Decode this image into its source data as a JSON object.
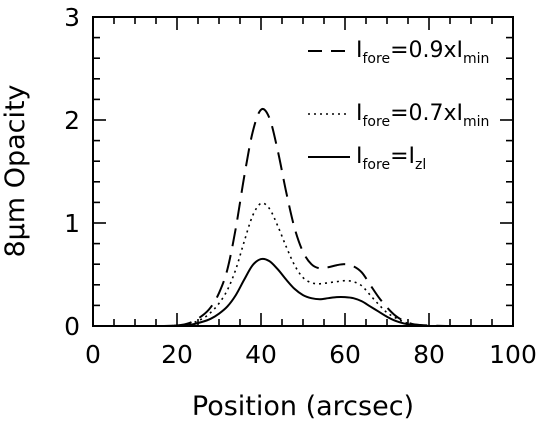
{
  "chart_data": {
    "type": "line",
    "title": "",
    "xlabel": "Position (arcsec)",
    "ylabel": "8μm Opacity",
    "xlim": [
      0,
      100
    ],
    "ylim": [
      0,
      3
    ],
    "xticks": [
      "0",
      "20",
      "40",
      "60",
      "80",
      "100"
    ],
    "yticks": [
      "0",
      "1",
      "2",
      "3"
    ],
    "grid": false,
    "legend_position": "top-right",
    "x": [
      0,
      10,
      16,
      20,
      23,
      26,
      28,
      30,
      32,
      34,
      36,
      38,
      40,
      42,
      44,
      46,
      48,
      50,
      52,
      54,
      56,
      58,
      60,
      62,
      64,
      66,
      68,
      70,
      72,
      74,
      76,
      78,
      80,
      84,
      90,
      100
    ],
    "series": [
      {
        "legend": {
          "main": "I",
          "sub": "fore",
          "mid": "=0.9xI",
          "sub2": "min"
        },
        "dash": "18 9",
        "values": [
          0,
          0,
          0,
          0.005,
          0.03,
          0.1,
          0.18,
          0.32,
          0.55,
          0.95,
          1.45,
          1.88,
          2.1,
          2.02,
          1.7,
          1.3,
          0.95,
          0.72,
          0.6,
          0.56,
          0.57,
          0.59,
          0.6,
          0.58,
          0.52,
          0.4,
          0.28,
          0.18,
          0.1,
          0.05,
          0.02,
          0.01,
          0.005,
          0,
          0,
          0
        ]
      },
      {
        "legend": {
          "main": "I",
          "sub": "fore",
          "mid": "=0.7xI",
          "sub2": "min"
        },
        "dash": "2 4",
        "values": [
          0,
          0,
          0,
          0.005,
          0.02,
          0.07,
          0.13,
          0.22,
          0.35,
          0.55,
          0.82,
          1.07,
          1.19,
          1.14,
          0.97,
          0.77,
          0.59,
          0.47,
          0.42,
          0.41,
          0.42,
          0.43,
          0.44,
          0.43,
          0.39,
          0.3,
          0.21,
          0.13,
          0.08,
          0.04,
          0.015,
          0.005,
          0,
          0,
          0,
          0
        ]
      },
      {
        "legend": {
          "main": "I",
          "sub": "fore",
          "mid": "=I",
          "sub2": "zl"
        },
        "dash": "",
        "values": [
          0,
          0,
          0,
          0.004,
          0.01,
          0.04,
          0.07,
          0.12,
          0.19,
          0.3,
          0.45,
          0.59,
          0.65,
          0.63,
          0.55,
          0.45,
          0.36,
          0.3,
          0.27,
          0.26,
          0.27,
          0.28,
          0.28,
          0.27,
          0.24,
          0.19,
          0.14,
          0.09,
          0.05,
          0.025,
          0.01,
          0.004,
          0,
          0,
          0,
          0
        ]
      }
    ]
  }
}
